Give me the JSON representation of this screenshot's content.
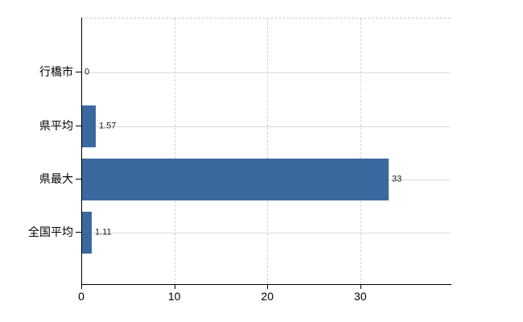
{
  "chart_data": {
    "type": "bar",
    "orientation": "horizontal",
    "title": "",
    "xlabel": "",
    "ylabel": "",
    "categories": [
      "行橋市",
      "県平均",
      "県最大",
      "全国平均"
    ],
    "values": [
      0,
      1.57,
      33,
      1.11
    ],
    "value_labels": [
      "0",
      "1.57",
      "33",
      "1.11"
    ],
    "x_ticks": [
      0,
      10,
      20,
      30
    ],
    "x_tick_labels": [
      "0",
      "10",
      "20",
      "30"
    ],
    "xlim": [
      0,
      39.7
    ],
    "grid": true,
    "legend": "none",
    "bar_color": "#3a689f",
    "grid_color": "#ccd5cc",
    "plot_border_color": "#c9cfc9",
    "axis_color": "#000000",
    "text_color": "#000000",
    "background_color": "#ffffff"
  }
}
